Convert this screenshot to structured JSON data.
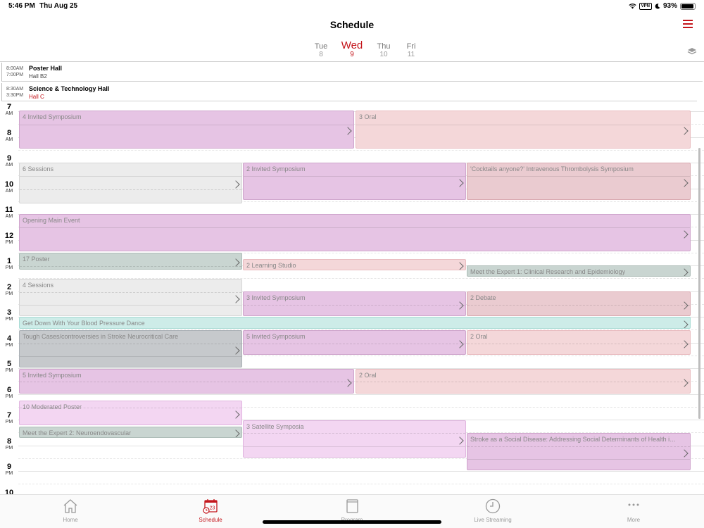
{
  "status_bar": {
    "time": "5:46 PM",
    "date": "Thu Aug 25",
    "vpn": "VPN",
    "battery": "93%",
    "battery_level": 0.93
  },
  "header": {
    "title": "Schedule",
    "menu_icon": "hamburger-menu-icon",
    "layers_icon": "layers-icon"
  },
  "days": [
    {
      "name": "Tue",
      "num": "8",
      "active": false
    },
    {
      "name": "Wed",
      "num": "9",
      "active": true
    },
    {
      "name": "Thu",
      "num": "10",
      "active": false
    },
    {
      "name": "Fri",
      "num": "11",
      "active": false
    }
  ],
  "pinned": [
    {
      "start": "8:00AM",
      "end": "7:00PM",
      "title": "Poster Hall",
      "room": "Hall B2"
    },
    {
      "start": "8:30AM",
      "end": "3:30PM",
      "title": "Science & Technology Hall",
      "room": "Hall C"
    }
  ],
  "hours": [
    {
      "num": "7",
      "ampm": "AM"
    },
    {
      "num": "8",
      "ampm": "AM"
    },
    {
      "num": "9",
      "ampm": "AM"
    },
    {
      "num": "10",
      "ampm": "AM"
    },
    {
      "num": "11",
      "ampm": "AM"
    },
    {
      "num": "12",
      "ampm": "PM"
    },
    {
      "num": "1",
      "ampm": "PM"
    },
    {
      "num": "2",
      "ampm": "PM"
    },
    {
      "num": "3",
      "ampm": "PM"
    },
    {
      "num": "4",
      "ampm": "PM"
    },
    {
      "num": "5",
      "ampm": "PM"
    },
    {
      "num": "6",
      "ampm": "PM"
    },
    {
      "num": "7",
      "ampm": "PM"
    },
    {
      "num": "8",
      "ampm": "PM"
    },
    {
      "num": "9",
      "ampm": "PM"
    },
    {
      "num": "10",
      "ampm": ""
    }
  ],
  "events": [
    {
      "title": "4 Invited Symposium",
      "color": "purple"
    },
    {
      "title": "3 Oral",
      "color": "pink"
    },
    {
      "title": "6 Sessions",
      "color": "gray"
    },
    {
      "title": "2 Invited Symposium",
      "color": "purple"
    },
    {
      "title": "'Cocktails anyone?' Intravenous Thrombolysis Symposium",
      "color": "rose"
    },
    {
      "title": "Opening Main Event",
      "color": "purple"
    },
    {
      "title": "17 Poster",
      "color": "sage"
    },
    {
      "title": "2 Learning Studio",
      "color": "pink"
    },
    {
      "title": "Meet the Expert 1: Clinical Research and Epidemiology",
      "color": "sage"
    },
    {
      "title": "4 Sessions",
      "color": "gray"
    },
    {
      "title": "3 Invited Symposium",
      "color": "purple"
    },
    {
      "title": "2 Debate",
      "color": "rose"
    },
    {
      "title": "Get Down With Your Blood Pressure Dance",
      "color": "cyan"
    },
    {
      "title": "Tough Cases/controversies in Stroke Neurocritical Care",
      "color": "slate"
    },
    {
      "title": "5 Invited Symposium",
      "color": "purple"
    },
    {
      "title": "2 Oral",
      "color": "pink"
    },
    {
      "title": "5 Invited Symposium",
      "color": "purple"
    },
    {
      "title": "2 Oral",
      "color": "pink"
    },
    {
      "title": "10 Moderated Poster",
      "color": "lightpurple"
    },
    {
      "title": "Meet the Expert 2: Neuroendovascular",
      "color": "sage"
    },
    {
      "title": "3 Satellite Symposia",
      "color": "lightpurple"
    },
    {
      "title": "Stroke as a Social Disease: Addressing Social Determinants of Health in Stroke",
      "color": "purple"
    }
  ],
  "tabs": [
    {
      "label": "Home",
      "icon": "home-icon",
      "active": false
    },
    {
      "label": "Schedule",
      "icon": "calendar-icon",
      "badge": "23",
      "active": true
    },
    {
      "label": "Program",
      "icon": "book-icon",
      "active": false
    },
    {
      "label": "Live Streaming",
      "icon": "clock-icon",
      "active": false
    },
    {
      "label": "More",
      "icon": "more-dots-icon",
      "active": false
    }
  ],
  "colors": {
    "accent": "#c4161c"
  }
}
